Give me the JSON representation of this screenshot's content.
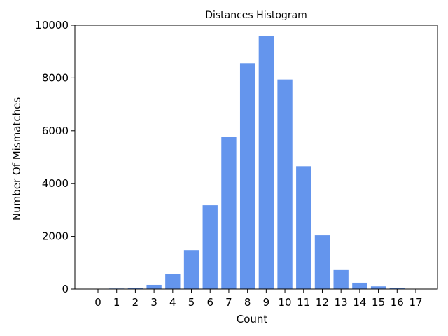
{
  "chart_data": {
    "type": "bar",
    "title": "Distances Histogram",
    "xlabel": "Count",
    "ylabel": "Number Of Mismatches",
    "categories": [
      "0",
      "1",
      "2",
      "3",
      "4",
      "5",
      "6",
      "7",
      "8",
      "9",
      "10",
      "11",
      "12",
      "13",
      "14",
      "15",
      "16",
      "17"
    ],
    "values": [
      5,
      20,
      40,
      160,
      560,
      1480,
      3180,
      5760,
      8560,
      9580,
      7940,
      4660,
      2040,
      720,
      240,
      100,
      30,
      5
    ],
    "ylim": [
      0,
      10000
    ],
    "yticks": [
      0,
      2000,
      4000,
      6000,
      8000,
      10000
    ],
    "grid": false,
    "bar_color": "#6495ED"
  }
}
